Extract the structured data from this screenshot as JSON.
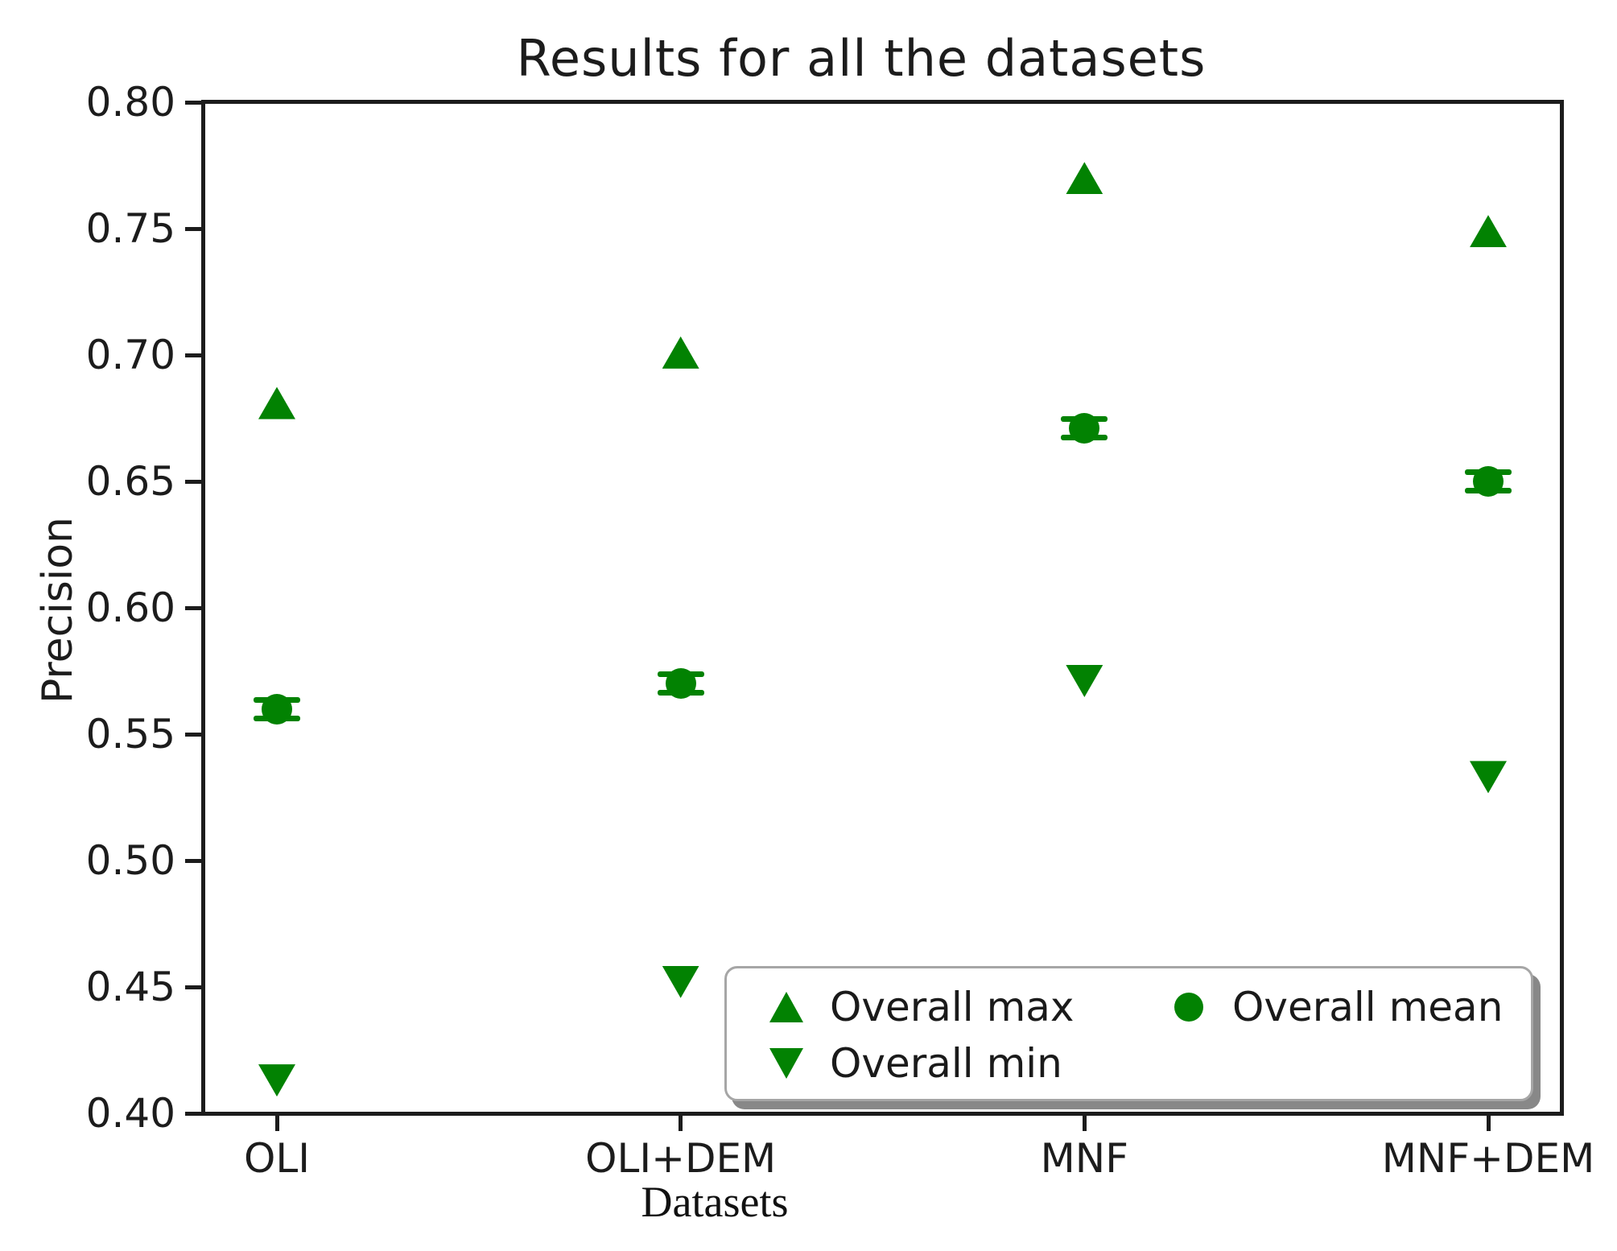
{
  "figure": {
    "title": "Results for all the datasets",
    "ylabel": "Precision",
    "xlabel": "Datasets"
  },
  "chart_data": {
    "type": "scatter",
    "title": "Results for all the datasets",
    "xlabel": "Datasets",
    "ylabel": "Precision",
    "categories": [
      "OLI",
      "OLI+DEM",
      "MNF",
      "MNF+DEM"
    ],
    "ylim": [
      0.4,
      0.8
    ],
    "yticks": [
      "0.80",
      "0.75",
      "0.70",
      "0.65",
      "0.60",
      "0.55",
      "0.50",
      "0.45",
      "0.40"
    ],
    "grid": false,
    "marker_color": "#028202",
    "legend_position": "lower right inside plot, two columns",
    "series": [
      {
        "name": "Overall max",
        "marker": "triangle-up",
        "values": [
          0.681,
          0.701,
          0.77,
          0.749
        ]
      },
      {
        "name": "Overall min",
        "marker": "triangle-down",
        "values": [
          0.413,
          0.452,
          0.571,
          0.533
        ]
      },
      {
        "name": "Overall mean",
        "marker": "circle",
        "error": 0.003,
        "values": [
          0.56,
          0.57,
          0.671,
          0.65
        ]
      }
    ]
  }
}
